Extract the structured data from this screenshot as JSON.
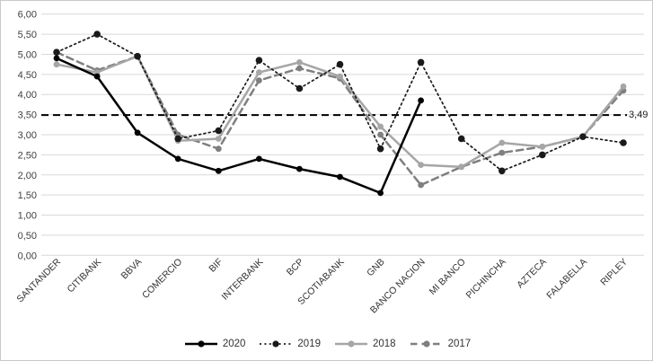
{
  "chart_data": {
    "type": "line",
    "title": "",
    "categories": [
      "SANTANDER",
      "CITIBANK",
      "BBVA",
      "COMERCIO",
      "BIF",
      "INTERBANK",
      "BCP",
      "SCOTIABANK",
      "GNB",
      "BANCO NACION",
      "MI BANCO",
      "PICHINCHA",
      "AZTECA",
      "FALABELLA",
      "RIPLEY"
    ],
    "series": [
      {
        "name": "2020",
        "color": "#000000",
        "style": "solid",
        "marker": "circle",
        "values": [
          4.9,
          4.45,
          3.05,
          2.4,
          2.1,
          2.4,
          2.15,
          1.95,
          1.55,
          3.85,
          null,
          null,
          null,
          null,
          null
        ]
      },
      {
        "name": "2019",
        "color": "#1a1a1a",
        "style": "dotted",
        "marker": "circle",
        "values": [
          5.05,
          5.5,
          4.95,
          2.9,
          3.1,
          4.85,
          4.15,
          4.75,
          2.65,
          4.8,
          2.9,
          2.1,
          2.5,
          2.95,
          2.8
        ]
      },
      {
        "name": "2018",
        "color": "#a6a6a6",
        "style": "solid",
        "marker": "circle",
        "values": [
          4.75,
          4.55,
          4.95,
          2.85,
          2.9,
          4.55,
          4.8,
          4.45,
          3.2,
          2.25,
          2.2,
          2.8,
          2.7,
          2.95,
          4.2
        ]
      },
      {
        "name": "2017",
        "color": "#7f7f7f",
        "style": "dashed",
        "marker": "circle",
        "values": [
          5.05,
          4.6,
          4.95,
          3.0,
          2.65,
          4.35,
          4.65,
          4.4,
          3.0,
          1.75,
          2.2,
          2.55,
          2.7,
          2.95,
          4.1
        ]
      }
    ],
    "reference_line": {
      "value": 3.49,
      "label": "3,49",
      "color": "#000000",
      "style": "dashed"
    },
    "y_axis": {
      "min": 0,
      "max": 6,
      "step": 0.5,
      "tick_labels": [
        "0,00",
        "0,50",
        "1,00",
        "1,50",
        "2,00",
        "2,50",
        "3,00",
        "3,50",
        "4,00",
        "4,50",
        "5,00",
        "5,50",
        "6,00"
      ]
    },
    "xlabel": "",
    "ylabel": "",
    "ylim": [
      0,
      6
    ],
    "grid": true,
    "gridline_color": "#d9d9d9",
    "legend_position": "bottom"
  }
}
